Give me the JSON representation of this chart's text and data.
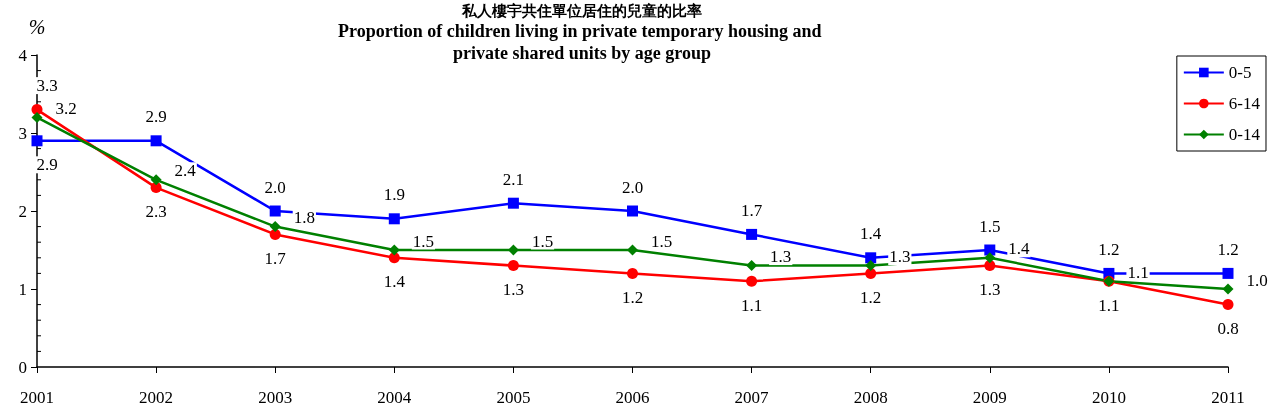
{
  "chart_data": {
    "type": "line",
    "title": "私人樓宇共住單位居住的兒童的比率",
    "subtitle": "Proportion of children living in private temporary housing and private shared units by age group",
    "ylabel": "%",
    "categories": [
      "2001",
      "2002",
      "2003",
      "2004",
      "2005",
      "2006",
      "2007",
      "2008",
      "2009",
      "2010",
      "2011"
    ],
    "series": [
      {
        "name": "0-5",
        "color": "#0000ff",
        "marker": "square",
        "values": [
          2.9,
          2.9,
          2.0,
          1.9,
          2.1,
          2.0,
          1.7,
          1.4,
          1.5,
          1.2,
          1.2
        ],
        "value_labels": [
          "2.9",
          "2.9",
          "2.0",
          "1.9",
          "2.1",
          "2.0",
          "1.7",
          "1.4",
          "1.5",
          "1.2",
          "1.2"
        ]
      },
      {
        "name": "6-14",
        "color": "#ff0000",
        "marker": "circle",
        "values": [
          3.3,
          2.3,
          1.7,
          1.4,
          1.3,
          1.2,
          1.1,
          1.2,
          1.3,
          1.1,
          0.8
        ],
        "value_labels": [
          "3.3",
          "2.3",
          "1.7",
          "1.4",
          "1.3",
          "1.2",
          "1.1",
          "1.2",
          "1.3",
          "1.1",
          "0.8"
        ]
      },
      {
        "name": "0-14",
        "color": "#008000",
        "marker": "diamond",
        "values": [
          3.2,
          2.4,
          1.8,
          1.5,
          1.5,
          1.5,
          1.3,
          1.3,
          1.4,
          1.1,
          1.0
        ],
        "value_labels": [
          "3.2",
          "2.4",
          "1.8",
          "1.5",
          "1.5",
          "1.5",
          "1.3",
          "1.3",
          "1.4",
          "1.1",
          "1.0"
        ]
      }
    ],
    "ylim": [
      0,
      4
    ],
    "yticks": [
      0,
      1,
      2,
      3,
      4
    ],
    "grid": false,
    "legend": "top right",
    "line_style": "solid"
  }
}
